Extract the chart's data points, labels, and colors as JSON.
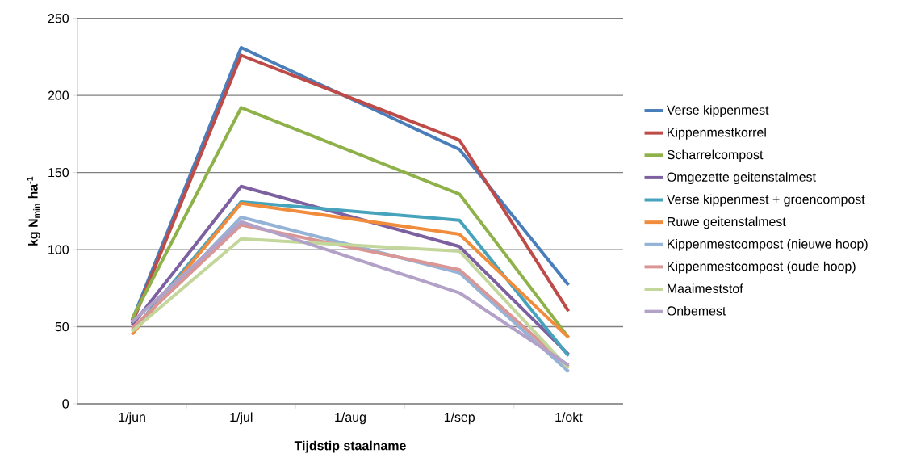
{
  "chart_data": {
    "type": "line",
    "xlabel": "Tijdstip staalname",
    "ylabel": "kg N$_{min}$  ha$^{-1}$",
    "categories": [
      "1/jun",
      "1/jul",
      "1/aug",
      "1/sep",
      "1/okt"
    ],
    "ylim": [
      0,
      250
    ],
    "yticks": [
      0,
      50,
      100,
      150,
      200,
      250
    ],
    "grid": "y",
    "legend": "right",
    "marker": "none",
    "line_style": "solid",
    "series": [
      {
        "name": "Verse kippenmest",
        "color": "#4a7ebb",
        "values": [
          54,
          231,
          null,
          165,
          77
        ]
      },
      {
        "name": "Kippenmestkorrel",
        "color": "#be4b48",
        "values": [
          52,
          226,
          null,
          171,
          60
        ]
      },
      {
        "name": "Scharrelcompost",
        "color": "#8fb14a",
        "values": [
          55,
          192,
          null,
          136,
          43
        ]
      },
      {
        "name": "Omgezette geitenstalmest",
        "color": "#7d60a0",
        "values": [
          51,
          141,
          null,
          102,
          32
        ]
      },
      {
        "name": "Verse kippenmest + groencompost",
        "color": "#46a3bb",
        "values": [
          47,
          131,
          null,
          119,
          31
        ]
      },
      {
        "name": "Ruwe geitenstalmest",
        "color": "#f08c3c",
        "values": [
          45,
          130,
          null,
          110,
          43
        ]
      },
      {
        "name": "Kippenmestcompost (nieuwe hoop)",
        "color": "#95b3d7",
        "values": [
          48,
          121,
          null,
          85,
          21
        ]
      },
      {
        "name": "Kippenmestcompost (oude hoop)",
        "color": "#d99694",
        "values": [
          49,
          116,
          null,
          87,
          24
        ]
      },
      {
        "name": "Maaimeststof",
        "color": "#c3d69b",
        "values": [
          47,
          107,
          null,
          99,
          23
        ]
      },
      {
        "name": "Onbemest",
        "color": "#b3a2c7",
        "values": [
          53,
          118,
          null,
          72,
          25
        ]
      }
    ]
  }
}
